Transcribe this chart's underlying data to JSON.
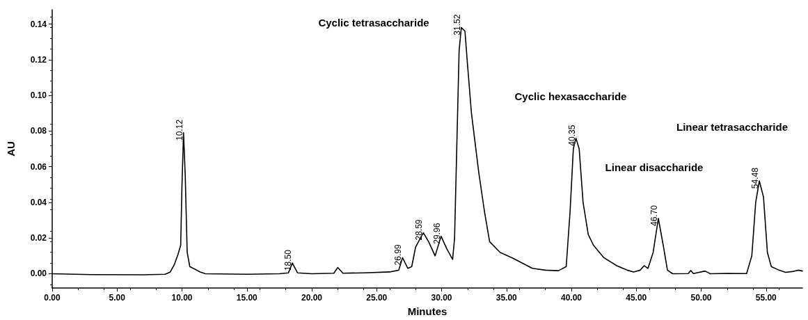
{
  "chart_data": {
    "type": "line",
    "xlabel": "Minutes",
    "ylabel": "AU",
    "xlim": [
      0,
      57.8
    ],
    "ylim": [
      -0.008,
      0.148
    ],
    "xticks": [
      {
        "value": 0,
        "label": "0.00"
      },
      {
        "value": 5,
        "label": "5.00"
      },
      {
        "value": 10,
        "label": "10.00"
      },
      {
        "value": 15,
        "label": "15.00"
      },
      {
        "value": 20,
        "label": "20.00"
      },
      {
        "value": 25,
        "label": "25.00"
      },
      {
        "value": 30,
        "label": "30.00"
      },
      {
        "value": 35,
        "label": "35.00"
      },
      {
        "value": 40,
        "label": "40.00"
      },
      {
        "value": 45,
        "label": "45.00"
      },
      {
        "value": 50,
        "label": "50.00"
      },
      {
        "value": 55,
        "label": "55.00"
      }
    ],
    "yticks": [
      {
        "value": 0,
        "label": "0.00"
      },
      {
        "value": 0.02,
        "label": "0.02"
      },
      {
        "value": 0.04,
        "label": "0.04"
      },
      {
        "value": 0.06,
        "label": "0.06"
      },
      {
        "value": 0.08,
        "label": "0.08"
      },
      {
        "value": 0.1,
        "label": "0.10"
      },
      {
        "value": 0.12,
        "label": "0.12"
      },
      {
        "value": 0.14,
        "label": "0.14"
      }
    ],
    "grid": false,
    "marker": "none",
    "line_style": "solid",
    "x": [
      0,
      3,
      7,
      8.7,
      9.1,
      9.4,
      9.7,
      9.9,
      10.0,
      10.12,
      10.25,
      10.4,
      10.6,
      11.0,
      11.4,
      11.8,
      15,
      17.5,
      18.2,
      18.5,
      18.9,
      20,
      21.7,
      22.0,
      22.4,
      24,
      26,
      26.7,
      26.99,
      27.4,
      27.7,
      28.0,
      28.59,
      29.0,
      29.5,
      29.96,
      30.4,
      30.85,
      31.0,
      31.2,
      31.35,
      31.52,
      31.8,
      32.0,
      32.3,
      32.86,
      33.3,
      33.7,
      34.5,
      35.5,
      37,
      38,
      39,
      39.6,
      39.9,
      40.15,
      40.35,
      40.6,
      40.9,
      41.3,
      41.7,
      42.5,
      43.5,
      44.3,
      44.8,
      45.3,
      45.6,
      45.9,
      46.3,
      46.7,
      47.1,
      47.4,
      47.8,
      49,
      49.2,
      49.4,
      50.3,
      50.7,
      52,
      53.5,
      53.9,
      54.2,
      54.48,
      54.8,
      55.1,
      55.4,
      56,
      56.5,
      57,
      57.5,
      57.8
    ],
    "series": [
      {
        "color": "#000000",
        "values": [
          0,
          -0.0005,
          -0.0006,
          -0.0003,
          0.001,
          0.005,
          0.011,
          0.016,
          0.05,
          0.079,
          0.055,
          0.012,
          0.004,
          0.0025,
          0.001,
          0,
          -0.0003,
          0,
          0.0005,
          0.006,
          0.0005,
          0,
          0.0003,
          0.0035,
          0.0003,
          0.0005,
          0.001,
          0.002,
          0.009,
          0.003,
          0.004,
          0.015,
          0.023,
          0.018,
          0.01,
          0.021,
          0.014,
          0.008,
          0.02,
          0.08,
          0.125,
          0.138,
          0.136,
          0.117,
          0.09,
          0.057,
          0.035,
          0.018,
          0.012,
          0.0087,
          0.003,
          0.002,
          0.0017,
          0.004,
          0.035,
          0.07,
          0.076,
          0.07,
          0.04,
          0.022,
          0.016,
          0.009,
          0.0045,
          0.002,
          0.001,
          0.002,
          0.0045,
          0.003,
          0.012,
          0.031,
          0.015,
          0.002,
          0,
          0.0001,
          0.0018,
          0.0001,
          0.0015,
          0,
          0.0002,
          0.0001,
          0.01,
          0.04,
          0.052,
          0.043,
          0.012,
          0.004,
          0.002,
          0.0008,
          0.0012,
          0.002,
          0.0015
        ]
      }
    ],
    "annotations": [
      {
        "text": "10.12",
        "x": 10.12,
        "y": 0.079
      },
      {
        "text": "18.50",
        "x": 18.5,
        "y": 0.006
      },
      {
        "text": "26.99",
        "x": 26.99,
        "y": 0.009
      },
      {
        "text": "28.59",
        "x": 28.59,
        "y": 0.023
      },
      {
        "text": "29.96",
        "x": 29.96,
        "y": 0.021
      },
      {
        "text": "31.52",
        "x": 31.52,
        "y": 0.138
      },
      {
        "text": "40.35",
        "x": 40.35,
        "y": 0.076
      },
      {
        "text": "46.70",
        "x": 46.7,
        "y": 0.031
      },
      {
        "text": "54.48",
        "x": 54.48,
        "y": 0.052
      },
      "Cyclic tetrasaccharide",
      "Cyclic hexasaccharide",
      "Linear disaccharide",
      "Linear tetrasaccharide"
    ]
  }
}
